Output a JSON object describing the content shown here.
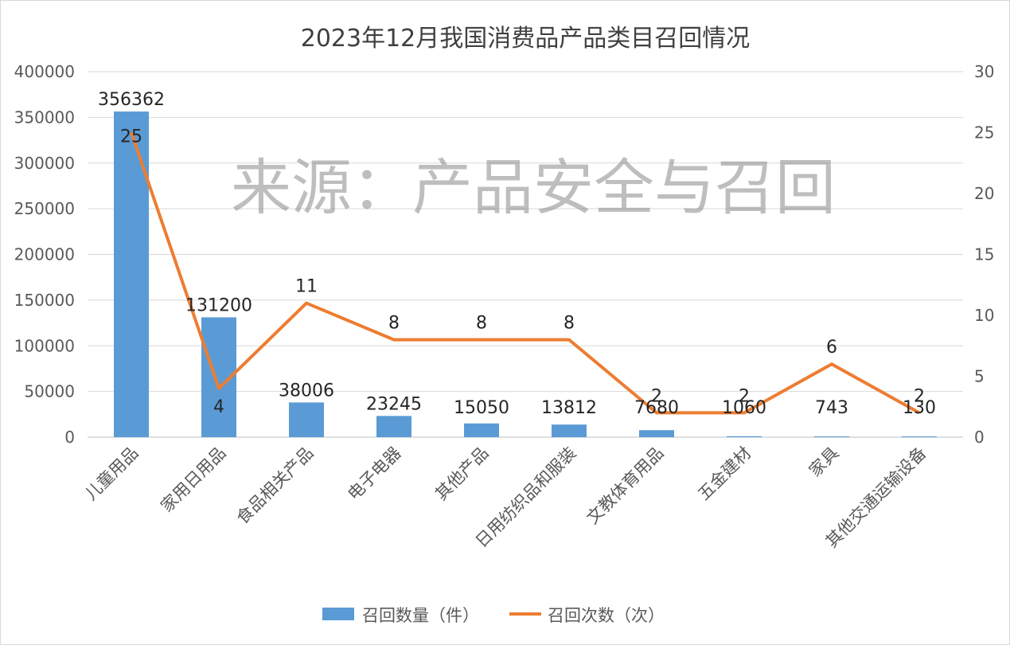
{
  "chart_data": {
    "type": "bar",
    "title": "2023年12月我国消费品产品类目召回情况",
    "watermark": "来源：产品安全与召回",
    "categories": [
      "儿童用品",
      "家用日用品",
      "食品相关产品",
      "电子电器",
      "其他产品",
      "日用纺织品和服装",
      "文教体育用品",
      "五金建材",
      "家具",
      "其他交通运输设备"
    ],
    "y_left": {
      "min": 0,
      "max": 400000,
      "step": 50000,
      "ticks": [
        "0",
        "50000",
        "100000",
        "150000",
        "200000",
        "250000",
        "300000",
        "350000",
        "400000"
      ]
    },
    "y_right": {
      "min": 0,
      "max": 30,
      "step": 5,
      "ticks": [
        "0",
        "5",
        "10",
        "15",
        "20",
        "25",
        "30"
      ]
    },
    "grid": "horizontal",
    "legend_position": "bottom",
    "series": [
      {
        "name": "召回数量（件）",
        "type": "bar",
        "axis": "left",
        "color": "#5b9bd5",
        "values": [
          356362,
          131200,
          38006,
          23245,
          15050,
          13812,
          7680,
          1060,
          743,
          130
        ],
        "labels": [
          "356362",
          "131200",
          "38006",
          "23245",
          "15050",
          "13812",
          "7680",
          "1060",
          "743",
          "130"
        ]
      },
      {
        "name": "召回次数（次）",
        "type": "line",
        "axis": "right",
        "color": "#ed7d31",
        "values": [
          25,
          4,
          11,
          8,
          8,
          8,
          2,
          2,
          6,
          2
        ],
        "labels": [
          "25",
          "4",
          "11",
          "8",
          "8",
          "8",
          "2",
          "2",
          "6",
          "2"
        ]
      }
    ]
  }
}
